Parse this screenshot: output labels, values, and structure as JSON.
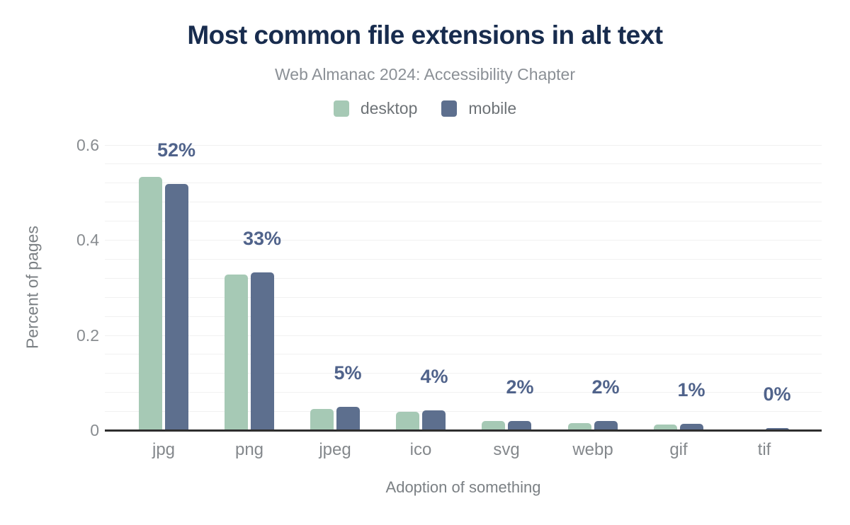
{
  "chart_data": {
    "type": "bar",
    "title": "Most common file extensions in alt text",
    "subtitle": "Web Almanac 2024: Accessibility Chapter",
    "xlabel": "Adoption of something",
    "ylabel": "Percent of pages",
    "categories": [
      "jpg",
      "png",
      "jpeg",
      "ico",
      "svg",
      "webp",
      "gif",
      "tif"
    ],
    "series": [
      {
        "name": "desktop",
        "color": "#a6c9b5",
        "values": [
          0.533,
          0.327,
          0.044,
          0.038,
          0.019,
          0.015,
          0.012,
          0.001
        ]
      },
      {
        "name": "mobile",
        "color": "#5d6f8e",
        "values": [
          0.518,
          0.332,
          0.049,
          0.041,
          0.019,
          0.019,
          0.013,
          0.005
        ]
      }
    ],
    "bar_labels": [
      "52%",
      "33%",
      "5%",
      "4%",
      "2%",
      "2%",
      "1%",
      "0%"
    ],
    "bar_labels_anchor_series": "mobile",
    "yticks": [
      0,
      0.2,
      0.4,
      0.6
    ],
    "ytick_labels": [
      "0",
      "0.2",
      "0.4",
      "0.6"
    ],
    "ylim": [
      0,
      0.6
    ],
    "grid": true,
    "grid_step": 0.04,
    "legend_position": "top"
  },
  "colors": {
    "title": "#182c4e",
    "subtitle": "#8b9096",
    "axis_text": "#888c90",
    "value_label": "#50638b",
    "axis_line": "#2e2e2e",
    "gridline": "#f1f1f1",
    "background": "#ffffff"
  }
}
